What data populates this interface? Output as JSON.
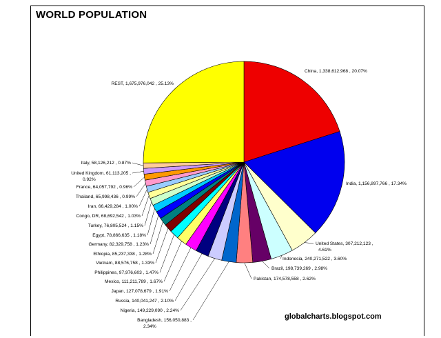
{
  "title": "WORLD POPULATION",
  "watermark": "globalcharts.blogspot.com",
  "chart_data": {
    "type": "pie",
    "title": "WORLD POPULATION",
    "start_angle_deg": 0,
    "direction": "clockwise",
    "slices": [
      {
        "name": "China",
        "value": 1338612968,
        "percent": "20.07%",
        "label": "China,  1,338,612,968 , 20.07%",
        "color": "#ee0000"
      },
      {
        "name": "India",
        "value": 1156897766,
        "percent": "17.34%",
        "label": "India,  1,156,897,766 , 17.34%",
        "color": "#0000ee"
      },
      {
        "name": "United States",
        "value": 307212123,
        "percent": "4.61%",
        "label": [
          "United States,  307,212,123 ,",
          "4.61%"
        ],
        "color": "#ffffcc"
      },
      {
        "name": "Indonesia",
        "value": 240271522,
        "percent": "3.60%",
        "label": "Indonesia,  240,271,522 , 3.60%",
        "color": "#ccffff"
      },
      {
        "name": "Brazil",
        "value": 198739269,
        "percent": "2.98%",
        "label": "Brazil,  198,739,269 , 2.98%",
        "color": "#660066"
      },
      {
        "name": "Pakistan",
        "value": 174578558,
        "percent": "2.62%",
        "label": "Pakistan,  174,578,558 , 2.62%",
        "color": "#ff8080"
      },
      {
        "name": "Bangladesh",
        "value": 156050883,
        "percent": "2.34%",
        "label": [
          "Bangladesh,  156,050,883 ,",
          "2.34%"
        ],
        "color": "#0066cc"
      },
      {
        "name": "Nigeria",
        "value": 149229090,
        "percent": "2.24%",
        "label": "Nigeria,  149,229,090 , 2.24%",
        "color": "#ccccff"
      },
      {
        "name": "Russia",
        "value": 140041247,
        "percent": "2.10%",
        "label": "Russia,  140,041,247 , 2.10%",
        "color": "#000080"
      },
      {
        "name": "Japan",
        "value": 127078679,
        "percent": "1.91%",
        "label": "Japan,  127,078,679 , 1.91%",
        "color": "#ff00ff"
      },
      {
        "name": "Mexico",
        "value": 111211789,
        "percent": "1.67%",
        "label": "Mexico,  111,211,789 , 1.67%",
        "color": "#ffff66"
      },
      {
        "name": "Philippines",
        "value": 97976603,
        "percent": "1.47%",
        "label": "Philippines,  97,976,603 , 1.47%",
        "color": "#00ffff"
      },
      {
        "name": "Vietnam",
        "value": 88576758,
        "percent": "1.33%",
        "label": "Vietnam,  88,576,758 , 1.33%",
        "color": "#800000"
      },
      {
        "name": "Ethiopia",
        "value": 85237338,
        "percent": "1.28%",
        "label": "Ethiopia,  85,237,338 , 1.28%",
        "color": "#008080"
      },
      {
        "name": "Germany",
        "value": 82329758,
        "percent": "1.23%",
        "label": "Germany,  82,329,758 , 1.23%",
        "color": "#0000ff"
      },
      {
        "name": "Egypt",
        "value": 78866635,
        "percent": "1.18%",
        "label": "Egypt,  78,866,635 , 1.18%",
        "color": "#00ccff"
      },
      {
        "name": "Turkey",
        "value": 76805524,
        "percent": "1.15%",
        "label": "Turkey,  76,805,524 , 1.15%",
        "color": "#ccffcc"
      },
      {
        "name": "Congo, DR",
        "value": 68692542,
        "percent": "1.03%",
        "label": "Congo, DR,  68,692,542 , 1.03%",
        "color": "#ffff99"
      },
      {
        "name": "Iran",
        "value": 66429284,
        "percent": "1.00%",
        "label": "Iran,  66,429,284 , 1.00%",
        "color": "#99ccff"
      },
      {
        "name": "Thailand",
        "value": 65998436,
        "percent": "0.99%",
        "label": "Thailand,  65,998,436 , 0.99%",
        "color": "#ff99cc"
      },
      {
        "name": "France",
        "value": 64057792,
        "percent": "0.96%",
        "label": "France,  64,057,792 , 0.96%",
        "color": "#ff9900"
      },
      {
        "name": "United Kingdom",
        "value": 61113205,
        "percent": "0.92%",
        "label": [
          "United Kingdom,  61,113,205 ,",
          "0.92%"
        ],
        "color": "#cc99ff"
      },
      {
        "name": "Italy",
        "value": 58126212,
        "percent": "0.87%",
        "label": "Italy,  58,126,212 , 0.87%",
        "color": "#ffcc99"
      },
      {
        "name": "REST",
        "value": 1675976042,
        "percent": "25.13%",
        "label": "REST,  1,675,976,042 , 25.13%",
        "color": "#ffff00"
      }
    ]
  }
}
